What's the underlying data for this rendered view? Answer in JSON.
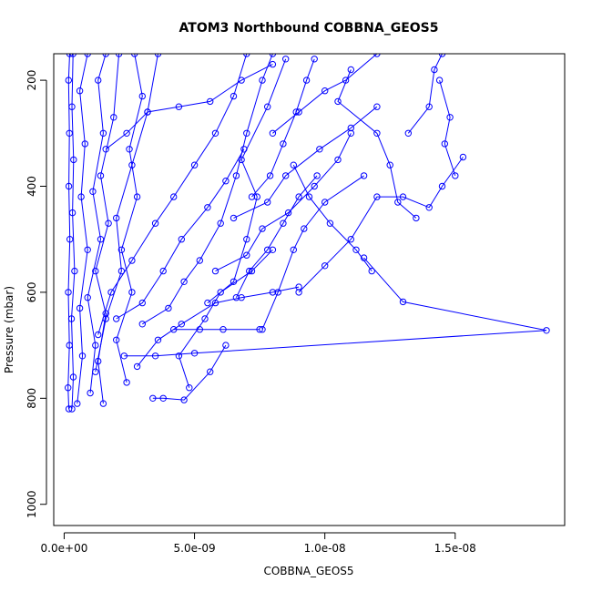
{
  "chart_data": {
    "type": "line",
    "title": "ATOM3 Northbound COBBNA_GEOS5",
    "xlabel": "COBBNA_GEOS5",
    "ylabel": "Pressure (mbar)",
    "xlim": [
      -4e-10,
      1.92e-08
    ],
    "ylim": [
      1040,
      150
    ],
    "y_reversed": true,
    "x_ticks": [
      0,
      5e-09,
      1e-08,
      1.5e-08
    ],
    "x_tick_labels": [
      "0.0e+00",
      "5.0e-09",
      "1.0e-08",
      "1.5e-08"
    ],
    "y_ticks": [
      200,
      400,
      600,
      800,
      1000
    ],
    "y_tick_labels": [
      "200",
      "400",
      "600",
      "800",
      "1000"
    ],
    "line_color": "#0000ff",
    "marker": "open-circle",
    "grid": false,
    "series": [
      {
        "points": [
          [
            1.8e-10,
            820
          ],
          [
            1.5e-10,
            780
          ],
          [
            2e-10,
            700
          ],
          [
            1.6e-10,
            600
          ],
          [
            2.2e-10,
            500
          ],
          [
            1.8e-10,
            400
          ],
          [
            2e-10,
            300
          ],
          [
            1.7e-10,
            200
          ],
          [
            2.1e-10,
            150
          ]
        ]
      },
      {
        "points": [
          [
            3e-10,
            820
          ],
          [
            3.5e-10,
            760
          ],
          [
            2.8e-10,
            650
          ],
          [
            4e-10,
            560
          ],
          [
            3.2e-10,
            450
          ],
          [
            3.6e-10,
            350
          ],
          [
            3e-10,
            250
          ],
          [
            3.4e-10,
            150
          ]
        ]
      },
      {
        "points": [
          [
            5e-10,
            810
          ],
          [
            7e-10,
            720
          ],
          [
            6e-10,
            630
          ],
          [
            9e-10,
            520
          ],
          [
            6.5e-10,
            420
          ],
          [
            8e-10,
            320
          ],
          [
            6e-10,
            220
          ],
          [
            9e-10,
            150
          ]
        ]
      },
      {
        "points": [
          [
            1e-09,
            790
          ],
          [
            1.2e-09,
            700
          ],
          [
            9e-10,
            610
          ],
          [
            1.4e-09,
            500
          ],
          [
            1.1e-09,
            410
          ],
          [
            1.5e-09,
            300
          ],
          [
            1.3e-09,
            200
          ],
          [
            1.6e-09,
            150
          ]
        ]
      },
      {
        "points": [
          [
            1.5e-09,
            810
          ],
          [
            1.3e-09,
            730
          ],
          [
            1.6e-09,
            640
          ],
          [
            1.2e-09,
            560
          ],
          [
            1.7e-09,
            470
          ],
          [
            1.4e-09,
            380
          ],
          [
            1.9e-09,
            270
          ],
          [
            2.1e-09,
            150
          ]
        ]
      },
      {
        "points": [
          [
            2.4e-09,
            770
          ],
          [
            2e-09,
            690
          ],
          [
            2.6e-09,
            600
          ],
          [
            2.2e-09,
            520
          ],
          [
            2.8e-09,
            420
          ],
          [
            2.5e-09,
            330
          ],
          [
            3e-09,
            230
          ],
          [
            2.7e-09,
            150
          ]
        ]
      },
      {
        "points": [
          [
            2.3e-09,
            720
          ],
          [
            3.5e-09,
            720
          ],
          [
            5e-09,
            715
          ],
          [
            1.85e-08,
            672
          ],
          [
            1.3e-08,
            618
          ],
          [
            1.15e-08,
            535
          ]
        ]
      },
      {
        "points": [
          [
            3.4e-09,
            800
          ],
          [
            3.8e-09,
            800
          ],
          [
            4.6e-09,
            803
          ],
          [
            5.6e-09,
            750
          ],
          [
            6.2e-09,
            700
          ]
        ]
      },
      {
        "points": [
          [
            4.8e-09,
            780
          ],
          [
            4.4e-09,
            720
          ],
          [
            5.4e-09,
            650
          ],
          [
            6e-09,
            600
          ],
          [
            7.2e-09,
            560
          ],
          [
            8e-09,
            520
          ]
        ]
      },
      {
        "points": [
          [
            4.2e-09,
            670
          ],
          [
            5.2e-09,
            670
          ],
          [
            6.1e-09,
            670
          ],
          [
            7.5e-09,
            670
          ]
        ]
      },
      {
        "points": [
          [
            7.6e-09,
            670
          ],
          [
            8.2e-09,
            600
          ],
          [
            8.8e-09,
            520
          ],
          [
            9.2e-09,
            480
          ],
          [
            1e-08,
            430
          ],
          [
            1.15e-08,
            380
          ]
        ]
      },
      {
        "points": [
          [
            5.5e-09,
            620
          ],
          [
            6.5e-09,
            580
          ],
          [
            7e-09,
            500
          ],
          [
            7.4e-09,
            420
          ],
          [
            6.8e-09,
            350
          ],
          [
            7.8e-09,
            250
          ],
          [
            8.5e-09,
            160
          ]
        ]
      },
      {
        "points": [
          [
            9e-09,
            600
          ],
          [
            1e-08,
            550
          ],
          [
            1.1e-08,
            500
          ],
          [
            1.2e-08,
            420
          ],
          [
            1.3e-08,
            420
          ],
          [
            1.4e-08,
            440
          ],
          [
            1.45e-08,
            400
          ],
          [
            1.53e-08,
            345
          ]
        ]
      },
      {
        "points": [
          [
            1.1e-08,
            180
          ],
          [
            1.05e-08,
            240
          ],
          [
            1.2e-08,
            300
          ],
          [
            1.25e-08,
            360
          ],
          [
            1.28e-08,
            430
          ],
          [
            1.35e-08,
            460
          ]
        ]
      },
      {
        "points": [
          [
            1.44e-08,
            200
          ],
          [
            1.48e-08,
            270
          ],
          [
            1.46e-08,
            320
          ],
          [
            1.5e-08,
            380
          ]
        ]
      },
      {
        "points": [
          [
            3e-09,
            660
          ],
          [
            4e-09,
            630
          ],
          [
            4.6e-09,
            580
          ],
          [
            5.2e-09,
            540
          ],
          [
            6e-09,
            470
          ],
          [
            6.6e-09,
            380
          ],
          [
            7e-09,
            300
          ],
          [
            7.6e-09,
            200
          ],
          [
            8e-09,
            150
          ]
        ]
      },
      {
        "points": [
          [
            2.8e-09,
            740
          ],
          [
            3.6e-09,
            690
          ],
          [
            4.5e-09,
            660
          ],
          [
            5.8e-09,
            620
          ],
          [
            6.8e-09,
            610
          ],
          [
            8e-09,
            600
          ],
          [
            9e-09,
            590
          ]
        ]
      },
      {
        "points": [
          [
            1.3e-09,
            680
          ],
          [
            1.8e-09,
            600
          ],
          [
            2.6e-09,
            540
          ],
          [
            3.5e-09,
            470
          ],
          [
            4.2e-09,
            420
          ],
          [
            5e-09,
            360
          ],
          [
            5.8e-09,
            300
          ],
          [
            6.5e-09,
            230
          ],
          [
            7e-09,
            150
          ]
        ]
      },
      {
        "points": [
          [
            1.2e-09,
            750
          ],
          [
            1.6e-09,
            650
          ],
          [
            2.2e-09,
            560
          ],
          [
            2e-09,
            460
          ],
          [
            2.6e-09,
            360
          ],
          [
            3.2e-09,
            260
          ],
          [
            3.6e-09,
            150
          ]
        ]
      },
      {
        "points": [
          [
            8e-09,
            300
          ],
          [
            9e-09,
            260
          ],
          [
            1e-08,
            220
          ],
          [
            1.08e-08,
            200
          ],
          [
            1.2e-08,
            150
          ]
        ]
      },
      {
        "points": [
          [
            1.32e-08,
            300
          ],
          [
            1.4e-08,
            250
          ],
          [
            1.42e-08,
            180
          ],
          [
            1.45e-08,
            150
          ]
        ]
      },
      {
        "points": [
          [
            6.5e-09,
            460
          ],
          [
            7.8e-09,
            430
          ],
          [
            8.5e-09,
            380
          ],
          [
            9.8e-09,
            330
          ],
          [
            1.1e-08,
            290
          ],
          [
            1.2e-08,
            250
          ]
        ]
      },
      {
        "points": [
          [
            5.8e-09,
            560
          ],
          [
            7e-09,
            530
          ],
          [
            7.6e-09,
            480
          ],
          [
            8.6e-09,
            450
          ],
          [
            9.6e-09,
            400
          ],
          [
            1.05e-08,
            350
          ],
          [
            1.1e-08,
            300
          ]
        ]
      },
      {
        "points": [
          [
            2e-09,
            650
          ],
          [
            3e-09,
            620
          ],
          [
            3.8e-09,
            560
          ],
          [
            4.5e-09,
            500
          ],
          [
            5.5e-09,
            440
          ],
          [
            6.2e-09,
            390
          ],
          [
            6.9e-09,
            330
          ]
        ]
      },
      {
        "points": [
          [
            1.6e-09,
            330
          ],
          [
            2.4e-09,
            300
          ],
          [
            3.2e-09,
            260
          ],
          [
            4.4e-09,
            250
          ],
          [
            5.6e-09,
            240
          ],
          [
            6.8e-09,
            200
          ],
          [
            8e-09,
            170
          ]
        ]
      },
      {
        "points": [
          [
            8.8e-09,
            360
          ],
          [
            9.4e-09,
            420
          ],
          [
            1.02e-08,
            470
          ],
          [
            1.12e-08,
            520
          ],
          [
            1.18e-08,
            560
          ]
        ]
      },
      {
        "points": [
          [
            7.2e-09,
            420
          ],
          [
            7.9e-09,
            380
          ],
          [
            8.4e-09,
            320
          ],
          [
            8.9e-09,
            260
          ],
          [
            9.3e-09,
            200
          ],
          [
            9.6e-09,
            160
          ]
        ]
      },
      {
        "points": [
          [
            6.6e-09,
            610
          ],
          [
            7.1e-09,
            560
          ],
          [
            7.8e-09,
            520
          ],
          [
            8.4e-09,
            470
          ],
          [
            9e-09,
            420
          ],
          [
            9.7e-09,
            380
          ]
        ]
      }
    ]
  }
}
